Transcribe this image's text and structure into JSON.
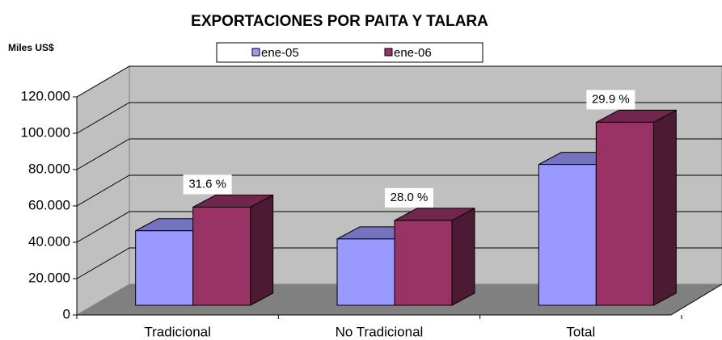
{
  "chart_data": {
    "type": "bar3d",
    "title": "EXPORTACIONES POR PAITA Y TALARA",
    "y_label": "Miles US$",
    "categories": [
      "Tradicional",
      "No Tradicional",
      "Total"
    ],
    "series": [
      {
        "name": "ene-05",
        "color": "#9999ff",
        "values": [
          41000,
          36500,
          77500
        ]
      },
      {
        "name": "ene-06",
        "color": "#993366",
        "values": [
          54000,
          46700,
          100700
        ]
      }
    ],
    "annotations": [
      "31.6 %",
      "28.0 %",
      "29.9 %"
    ],
    "ylim": [
      0,
      120000
    ],
    "yticks": [
      0,
      {
        "value": 20000,
        "label": "20.000"
      },
      {
        "value": 40000,
        "label": "40.000"
      },
      {
        "value": 60000,
        "label": "60.000"
      },
      {
        "value": 80000,
        "label": "80.000"
      },
      {
        "value": 100000,
        "label": "100.000"
      },
      {
        "value": 120000,
        "label": "120.000"
      }
    ],
    "grid": true
  }
}
